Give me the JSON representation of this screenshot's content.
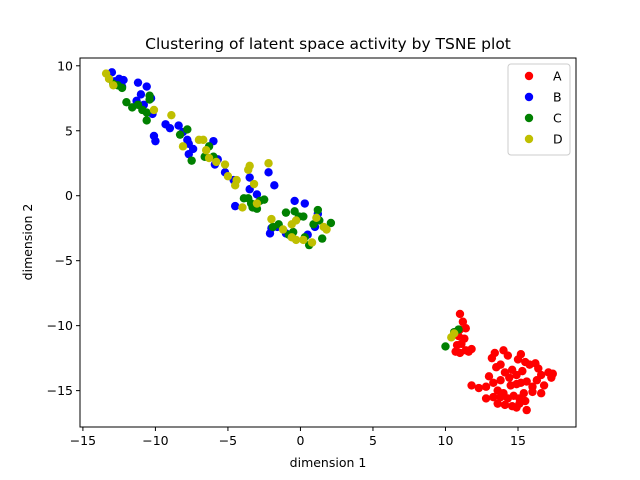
{
  "chart_data": {
    "type": "scatter",
    "title": "Clustering of latent space activity by TSNE plot",
    "xlabel": "dimension 1",
    "ylabel": "dimension 2",
    "xlim": [
      -15.2,
      19.0
    ],
    "ylim": [
      -17.8,
      10.6
    ],
    "xticks": [
      -15,
      -10,
      -5,
      0,
      5,
      10,
      15
    ],
    "yticks": [
      10,
      5,
      0,
      -5,
      -10,
      -15
    ],
    "grid": false,
    "legend_position": "top-right",
    "series": [
      {
        "name": "A",
        "color": "#ff0000",
        "points": [
          [
            11.0,
            -9.1
          ],
          [
            11.2,
            -9.7
          ],
          [
            11.0,
            -10.3
          ],
          [
            11.4,
            -10.2
          ],
          [
            10.9,
            -10.8
          ],
          [
            11.3,
            -11.0
          ],
          [
            10.8,
            -11.5
          ],
          [
            11.1,
            -11.4
          ],
          [
            10.7,
            -12.0
          ],
          [
            11.4,
            -11.9
          ],
          [
            11.0,
            -12.1
          ],
          [
            11.6,
            -12.0
          ],
          [
            11.8,
            -11.8
          ],
          [
            13.4,
            -12.1
          ],
          [
            14.0,
            -11.9
          ],
          [
            14.3,
            -12.3
          ],
          [
            15.2,
            -12.2
          ],
          [
            15.0,
            -12.6
          ],
          [
            13.2,
            -12.5
          ],
          [
            13.5,
            -13.2
          ],
          [
            13.8,
            -13.0
          ],
          [
            14.1,
            -13.6
          ],
          [
            14.6,
            -13.4
          ],
          [
            15.5,
            -12.8
          ],
          [
            15.8,
            -13.0
          ],
          [
            16.2,
            -12.9
          ],
          [
            15.3,
            -13.5
          ],
          [
            14.9,
            -13.8
          ],
          [
            14.4,
            -14.0
          ],
          [
            13.8,
            -14.2
          ],
          [
            13.3,
            -14.4
          ],
          [
            13.0,
            -13.9
          ],
          [
            12.8,
            -14.7
          ],
          [
            12.3,
            -14.8
          ],
          [
            11.8,
            -14.6
          ],
          [
            13.6,
            -15.0
          ],
          [
            14.0,
            -15.2
          ],
          [
            14.5,
            -14.6
          ],
          [
            14.9,
            -14.5
          ],
          [
            15.2,
            -14.4
          ],
          [
            15.6,
            -14.3
          ],
          [
            16.0,
            -14.7
          ],
          [
            16.3,
            -14.2
          ],
          [
            16.0,
            -15.1
          ],
          [
            15.4,
            -15.2
          ],
          [
            15.1,
            -15.6
          ],
          [
            14.7,
            -15.4
          ],
          [
            14.3,
            -15.6
          ],
          [
            13.8,
            -15.5
          ],
          [
            13.3,
            -15.5
          ],
          [
            12.8,
            -15.6
          ],
          [
            14.1,
            -16.1
          ],
          [
            14.6,
            -16.2
          ],
          [
            14.9,
            -16.3
          ],
          [
            15.1,
            -16.0
          ],
          [
            15.6,
            -16.5
          ],
          [
            15.5,
            -15.8
          ],
          [
            16.6,
            -15.2
          ],
          [
            16.6,
            -13.8
          ],
          [
            17.1,
            -13.6
          ],
          [
            17.4,
            -13.7
          ],
          [
            17.3,
            -14.0
          ],
          [
            16.8,
            -14.6
          ],
          [
            16.4,
            -13.3
          ],
          [
            13.6,
            -16.0
          ]
        ]
      },
      {
        "name": "B",
        "color": "#0000ff",
        "points": [
          [
            -13.0,
            9.5
          ],
          [
            -12.5,
            9.0
          ],
          [
            -12.8,
            8.8
          ],
          [
            -12.2,
            8.9
          ],
          [
            -12.3,
            8.4
          ],
          [
            -11.2,
            8.7
          ],
          [
            -10.6,
            8.4
          ],
          [
            -11.0,
            7.8
          ],
          [
            -10.3,
            7.5
          ],
          [
            -11.3,
            7.3
          ],
          [
            -10.8,
            7.0
          ],
          [
            -10.2,
            6.3
          ],
          [
            -10.1,
            4.6
          ],
          [
            -10.0,
            4.2
          ],
          [
            -9.3,
            5.5
          ],
          [
            -9.0,
            5.2
          ],
          [
            -8.4,
            5.4
          ],
          [
            -8.1,
            4.9
          ],
          [
            -7.8,
            4.3
          ],
          [
            -7.7,
            4.0
          ],
          [
            -7.4,
            3.6
          ],
          [
            -7.7,
            3.2
          ],
          [
            -6.0,
            4.2
          ],
          [
            -5.7,
            2.8
          ],
          [
            -5.9,
            2.4
          ],
          [
            -5.2,
            1.8
          ],
          [
            -4.6,
            1.2
          ],
          [
            -3.5,
            1.4
          ],
          [
            -3.5,
            0.5
          ],
          [
            -2.2,
            1.8
          ],
          [
            -1.8,
            0.8
          ],
          [
            -4.5,
            -0.8
          ],
          [
            -3.0,
            0.1
          ],
          [
            -2.0,
            -2.5
          ],
          [
            -2.1,
            -2.9
          ],
          [
            -1.6,
            -2.4
          ],
          [
            -1.0,
            -2.9
          ],
          [
            -0.4,
            -0.4
          ],
          [
            0.3,
            -0.6
          ],
          [
            1.2,
            -1.4
          ],
          [
            1.0,
            -2.4
          ],
          [
            0.5,
            -3.0
          ]
        ]
      },
      {
        "name": "C",
        "color": "#008000",
        "points": [
          [
            -12.9,
            8.6
          ],
          [
            -12.6,
            8.5
          ],
          [
            -12.3,
            8.3
          ],
          [
            -12.0,
            7.2
          ],
          [
            -11.6,
            6.8
          ],
          [
            -11.2,
            7.0
          ],
          [
            -10.9,
            6.6
          ],
          [
            -10.6,
            5.8
          ],
          [
            -10.4,
            7.7
          ],
          [
            -10.4,
            7.4
          ],
          [
            -10.6,
            6.4
          ],
          [
            -8.3,
            4.7
          ],
          [
            -7.8,
            5.1
          ],
          [
            -7.5,
            2.7
          ],
          [
            -6.6,
            3.0
          ],
          [
            -6.3,
            3.8
          ],
          [
            -6.0,
            3.0
          ],
          [
            -3.9,
            -0.2
          ],
          [
            -3.6,
            -0.2
          ],
          [
            -3.4,
            -0.6
          ],
          [
            -3.3,
            -0.9
          ],
          [
            -3.0,
            -1.0
          ],
          [
            -2.8,
            -0.4
          ],
          [
            -2.5,
            -0.3
          ],
          [
            -1.9,
            -2.4
          ],
          [
            -1.5,
            -2.2
          ],
          [
            -1.0,
            -1.3
          ],
          [
            -0.8,
            -3.0
          ],
          [
            -0.4,
            -1.2
          ],
          [
            -0.1,
            -1.6
          ],
          [
            0.2,
            -1.6
          ],
          [
            0.6,
            -3.8
          ],
          [
            0.9,
            -2.2
          ],
          [
            1.2,
            -1.1
          ],
          [
            1.3,
            -1.9
          ],
          [
            1.5,
            -3.3
          ],
          [
            2.1,
            -2.1
          ],
          [
            10.0,
            -11.6
          ],
          [
            10.6,
            -10.5
          ],
          [
            10.9,
            -10.3
          ],
          [
            0.3,
            -3.2
          ],
          [
            -0.5,
            -2.8
          ]
        ]
      },
      {
        "name": "D",
        "color": "#bfbf00",
        "points": [
          [
            -13.4,
            9.4
          ],
          [
            -13.2,
            9.0
          ],
          [
            -12.9,
            8.5
          ],
          [
            -10.1,
            6.6
          ],
          [
            -8.9,
            6.2
          ],
          [
            -8.1,
            3.8
          ],
          [
            -7.0,
            4.3
          ],
          [
            -6.7,
            4.3
          ],
          [
            -6.5,
            3.5
          ],
          [
            -6.3,
            2.9
          ],
          [
            -5.8,
            2.6
          ],
          [
            -5.2,
            2.4
          ],
          [
            -5.0,
            1.5
          ],
          [
            -4.5,
            0.8
          ],
          [
            -4.4,
            1.2
          ],
          [
            -4.0,
            -0.9
          ],
          [
            -3.6,
            2.0
          ],
          [
            -3.5,
            2.3
          ],
          [
            -3.2,
            0.9
          ],
          [
            -2.2,
            2.5
          ],
          [
            -2.0,
            -1.8
          ],
          [
            -1.2,
            -2.6
          ],
          [
            -0.6,
            -2.2
          ],
          [
            -0.6,
            -3.2
          ],
          [
            -0.3,
            -3.4
          ],
          [
            0.2,
            -3.4
          ],
          [
            0.8,
            -3.6
          ],
          [
            1.1,
            -1.7
          ],
          [
            1.6,
            -2.4
          ],
          [
            1.8,
            -2.6
          ],
          [
            10.6,
            -10.6
          ],
          [
            10.4,
            -10.9
          ],
          [
            -3.0,
            -0.6
          ],
          [
            -0.3,
            -1.9
          ]
        ]
      }
    ]
  }
}
